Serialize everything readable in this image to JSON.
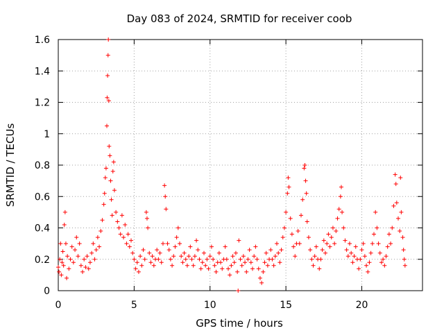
{
  "chart_data": {
    "type": "scatter",
    "title": "Day 083 of 2024, SRMTID for receiver coob",
    "xlabel": "GPS time / hours",
    "ylabel": "SRMTID / TECUs",
    "xlim": [
      0,
      24
    ],
    "ylim": [
      0,
      1.6
    ],
    "xticks": [
      0,
      5,
      10,
      15,
      20
    ],
    "xtick_labels": [
      "0",
      "5",
      "10",
      "15",
      "20"
    ],
    "yticks": [
      0,
      0.2,
      0.4,
      0.6,
      0.8,
      1,
      1.2,
      1.4,
      1.6
    ],
    "ytick_labels": [
      "0",
      "0.2",
      "0.4",
      "0.6",
      "0.8",
      "1",
      "1.2",
      "1.4",
      "1.6"
    ],
    "grid": true,
    "marker": "+",
    "color": "#ff0000",
    "series": [
      {
        "name": "SRMTID",
        "points": [
          [
            0.0,
            0.15
          ],
          [
            0.05,
            0.12
          ],
          [
            0.1,
            0.2
          ],
          [
            0.15,
            0.3
          ],
          [
            0.2,
            0.1
          ],
          [
            0.25,
            0.18
          ],
          [
            0.3,
            0.25
          ],
          [
            0.35,
            0.16
          ],
          [
            0.4,
            0.42
          ],
          [
            0.45,
            0.5
          ],
          [
            0.5,
            0.3
          ],
          [
            0.55,
            0.08
          ],
          [
            0.6,
            0.22
          ],
          [
            0.7,
            0.14
          ],
          [
            0.8,
            0.2
          ],
          [
            0.9,
            0.28
          ],
          [
            1.0,
            0.18
          ],
          [
            1.1,
            0.26
          ],
          [
            1.2,
            0.34
          ],
          [
            1.3,
            0.22
          ],
          [
            1.4,
            0.3
          ],
          [
            1.5,
            0.16
          ],
          [
            1.6,
            0.12
          ],
          [
            1.7,
            0.2
          ],
          [
            1.8,
            0.15
          ],
          [
            1.9,
            0.22
          ],
          [
            2.0,
            0.14
          ],
          [
            2.1,
            0.18
          ],
          [
            2.2,
            0.24
          ],
          [
            2.3,
            0.3
          ],
          [
            2.4,
            0.2
          ],
          [
            2.5,
            0.26
          ],
          [
            2.6,
            0.34
          ],
          [
            2.7,
            0.28
          ],
          [
            2.8,
            0.38
          ],
          [
            2.9,
            0.45
          ],
          [
            3.0,
            0.55
          ],
          [
            3.05,
            0.62
          ],
          [
            3.1,
            0.72
          ],
          [
            3.15,
            0.78
          ],
          [
            3.2,
            1.05
          ],
          [
            3.22,
            1.23
          ],
          [
            3.25,
            1.37
          ],
          [
            3.28,
            1.5
          ],
          [
            3.3,
            1.6
          ],
          [
            3.33,
            1.21
          ],
          [
            3.35,
            0.92
          ],
          [
            3.4,
            0.86
          ],
          [
            3.45,
            0.7
          ],
          [
            3.5,
            0.58
          ],
          [
            3.55,
            0.48
          ],
          [
            3.6,
            0.76
          ],
          [
            3.65,
            0.82
          ],
          [
            3.7,
            0.64
          ],
          [
            3.8,
            0.5
          ],
          [
            3.9,
            0.44
          ],
          [
            4.0,
            0.4
          ],
          [
            4.1,
            0.36
          ],
          [
            4.2,
            0.48
          ],
          [
            4.3,
            0.34
          ],
          [
            4.4,
            0.42
          ],
          [
            4.5,
            0.3
          ],
          [
            4.6,
            0.36
          ],
          [
            4.7,
            0.28
          ],
          [
            4.8,
            0.32
          ],
          [
            4.9,
            0.24
          ],
          [
            5.0,
            0.2
          ],
          [
            5.1,
            0.14
          ],
          [
            5.2,
            0.18
          ],
          [
            5.3,
            0.12
          ],
          [
            5.4,
            0.22
          ],
          [
            5.5,
            0.16
          ],
          [
            5.6,
            0.26
          ],
          [
            5.7,
            0.2
          ],
          [
            5.8,
            0.5
          ],
          [
            5.85,
            0.46
          ],
          [
            5.9,
            0.4
          ],
          [
            6.0,
            0.24
          ],
          [
            6.1,
            0.18
          ],
          [
            6.2,
            0.22
          ],
          [
            6.3,
            0.16
          ],
          [
            6.4,
            0.2
          ],
          [
            6.5,
            0.26
          ],
          [
            6.6,
            0.2
          ],
          [
            6.7,
            0.24
          ],
          [
            6.8,
            0.18
          ],
          [
            6.9,
            0.3
          ],
          [
            7.0,
            0.67
          ],
          [
            7.05,
            0.6
          ],
          [
            7.1,
            0.52
          ],
          [
            7.2,
            0.3
          ],
          [
            7.3,
            0.26
          ],
          [
            7.4,
            0.2
          ],
          [
            7.5,
            0.16
          ],
          [
            7.6,
            0.22
          ],
          [
            7.7,
            0.28
          ],
          [
            7.8,
            0.34
          ],
          [
            7.9,
            0.4
          ],
          [
            8.0,
            0.3
          ],
          [
            8.1,
            0.22
          ],
          [
            8.2,
            0.18
          ],
          [
            8.3,
            0.24
          ],
          [
            8.4,
            0.2
          ],
          [
            8.5,
            0.16
          ],
          [
            8.6,
            0.22
          ],
          [
            8.7,
            0.28
          ],
          [
            8.8,
            0.2
          ],
          [
            8.9,
            0.16
          ],
          [
            9.0,
            0.22
          ],
          [
            9.1,
            0.32
          ],
          [
            9.2,
            0.26
          ],
          [
            9.3,
            0.2
          ],
          [
            9.4,
            0.14
          ],
          [
            9.5,
            0.18
          ],
          [
            9.6,
            0.24
          ],
          [
            9.7,
            0.16
          ],
          [
            9.8,
            0.2
          ],
          [
            9.9,
            0.14
          ],
          [
            10.0,
            0.22
          ],
          [
            10.1,
            0.28
          ],
          [
            10.2,
            0.2
          ],
          [
            10.3,
            0.16
          ],
          [
            10.4,
            0.12
          ],
          [
            10.5,
            0.18
          ],
          [
            10.6,
            0.24
          ],
          [
            10.7,
            0.18
          ],
          [
            10.8,
            0.14
          ],
          [
            10.9,
            0.2
          ],
          [
            11.0,
            0.28
          ],
          [
            11.1,
            0.2
          ],
          [
            11.2,
            0.14
          ],
          [
            11.3,
            0.1
          ],
          [
            11.4,
            0.16
          ],
          [
            11.5,
            0.22
          ],
          [
            11.6,
            0.18
          ],
          [
            11.7,
            0.24
          ],
          [
            11.8,
            0.12
          ],
          [
            11.85,
            0.0
          ],
          [
            11.9,
            0.32
          ],
          [
            12.0,
            0.2
          ],
          [
            12.1,
            0.16
          ],
          [
            12.2,
            0.22
          ],
          [
            12.3,
            0.18
          ],
          [
            12.4,
            0.12
          ],
          [
            12.5,
            0.2
          ],
          [
            12.6,
            0.26
          ],
          [
            12.7,
            0.18
          ],
          [
            12.8,
            0.14
          ],
          [
            12.9,
            0.22
          ],
          [
            13.0,
            0.28
          ],
          [
            13.1,
            0.2
          ],
          [
            13.2,
            0.14
          ],
          [
            13.3,
            0.08
          ],
          [
            13.4,
            0.05
          ],
          [
            13.5,
            0.12
          ],
          [
            13.6,
            0.18
          ],
          [
            13.7,
            0.24
          ],
          [
            13.8,
            0.16
          ],
          [
            13.9,
            0.2
          ],
          [
            14.0,
            0.26
          ],
          [
            14.1,
            0.2
          ],
          [
            14.2,
            0.16
          ],
          [
            14.3,
            0.22
          ],
          [
            14.4,
            0.3
          ],
          [
            14.5,
            0.24
          ],
          [
            14.6,
            0.18
          ],
          [
            14.7,
            0.26
          ],
          [
            14.8,
            0.34
          ],
          [
            14.9,
            0.4
          ],
          [
            15.0,
            0.5
          ],
          [
            15.1,
            0.62
          ],
          [
            15.15,
            0.72
          ],
          [
            15.2,
            0.66
          ],
          [
            15.3,
            0.46
          ],
          [
            15.4,
            0.36
          ],
          [
            15.5,
            0.28
          ],
          [
            15.6,
            0.22
          ],
          [
            15.7,
            0.3
          ],
          [
            15.8,
            0.38
          ],
          [
            15.9,
            0.3
          ],
          [
            16.0,
            0.48
          ],
          [
            16.1,
            0.58
          ],
          [
            16.2,
            0.78
          ],
          [
            16.25,
            0.8
          ],
          [
            16.3,
            0.7
          ],
          [
            16.35,
            0.62
          ],
          [
            16.4,
            0.44
          ],
          [
            16.5,
            0.34
          ],
          [
            16.6,
            0.26
          ],
          [
            16.7,
            0.2
          ],
          [
            16.8,
            0.16
          ],
          [
            16.9,
            0.22
          ],
          [
            17.0,
            0.28
          ],
          [
            17.1,
            0.2
          ],
          [
            17.2,
            0.14
          ],
          [
            17.3,
            0.2
          ],
          [
            17.4,
            0.26
          ],
          [
            17.5,
            0.32
          ],
          [
            17.6,
            0.24
          ],
          [
            17.7,
            0.3
          ],
          [
            17.8,
            0.36
          ],
          [
            17.9,
            0.28
          ],
          [
            18.0,
            0.34
          ],
          [
            18.1,
            0.4
          ],
          [
            18.2,
            0.3
          ],
          [
            18.3,
            0.38
          ],
          [
            18.4,
            0.46
          ],
          [
            18.5,
            0.52
          ],
          [
            18.6,
            0.6
          ],
          [
            18.65,
            0.66
          ],
          [
            18.7,
            0.5
          ],
          [
            18.8,
            0.4
          ],
          [
            18.9,
            0.32
          ],
          [
            19.0,
            0.26
          ],
          [
            19.1,
            0.22
          ],
          [
            19.2,
            0.3
          ],
          [
            19.3,
            0.24
          ],
          [
            19.4,
            0.18
          ],
          [
            19.5,
            0.22
          ],
          [
            19.6,
            0.28
          ],
          [
            19.7,
            0.2
          ],
          [
            19.8,
            0.14
          ],
          [
            19.9,
            0.2
          ],
          [
            20.0,
            0.26
          ],
          [
            20.1,
            0.3
          ],
          [
            20.2,
            0.22
          ],
          [
            20.3,
            0.16
          ],
          [
            20.4,
            0.12
          ],
          [
            20.5,
            0.18
          ],
          [
            20.6,
            0.24
          ],
          [
            20.7,
            0.3
          ],
          [
            20.8,
            0.36
          ],
          [
            20.9,
            0.5
          ],
          [
            21.0,
            0.4
          ],
          [
            21.1,
            0.3
          ],
          [
            21.2,
            0.24
          ],
          [
            21.3,
            0.18
          ],
          [
            21.4,
            0.2
          ],
          [
            21.5,
            0.16
          ],
          [
            21.6,
            0.22
          ],
          [
            21.7,
            0.28
          ],
          [
            21.8,
            0.36
          ],
          [
            21.9,
            0.3
          ],
          [
            22.0,
            0.4
          ],
          [
            22.1,
            0.54
          ],
          [
            22.2,
            0.74
          ],
          [
            22.25,
            0.68
          ],
          [
            22.3,
            0.56
          ],
          [
            22.4,
            0.46
          ],
          [
            22.5,
            0.38
          ],
          [
            22.55,
            0.72
          ],
          [
            22.6,
            0.5
          ],
          [
            22.7,
            0.34
          ],
          [
            22.75,
            0.26
          ],
          [
            22.8,
            0.2
          ],
          [
            22.85,
            0.16
          ]
        ]
      }
    ]
  }
}
